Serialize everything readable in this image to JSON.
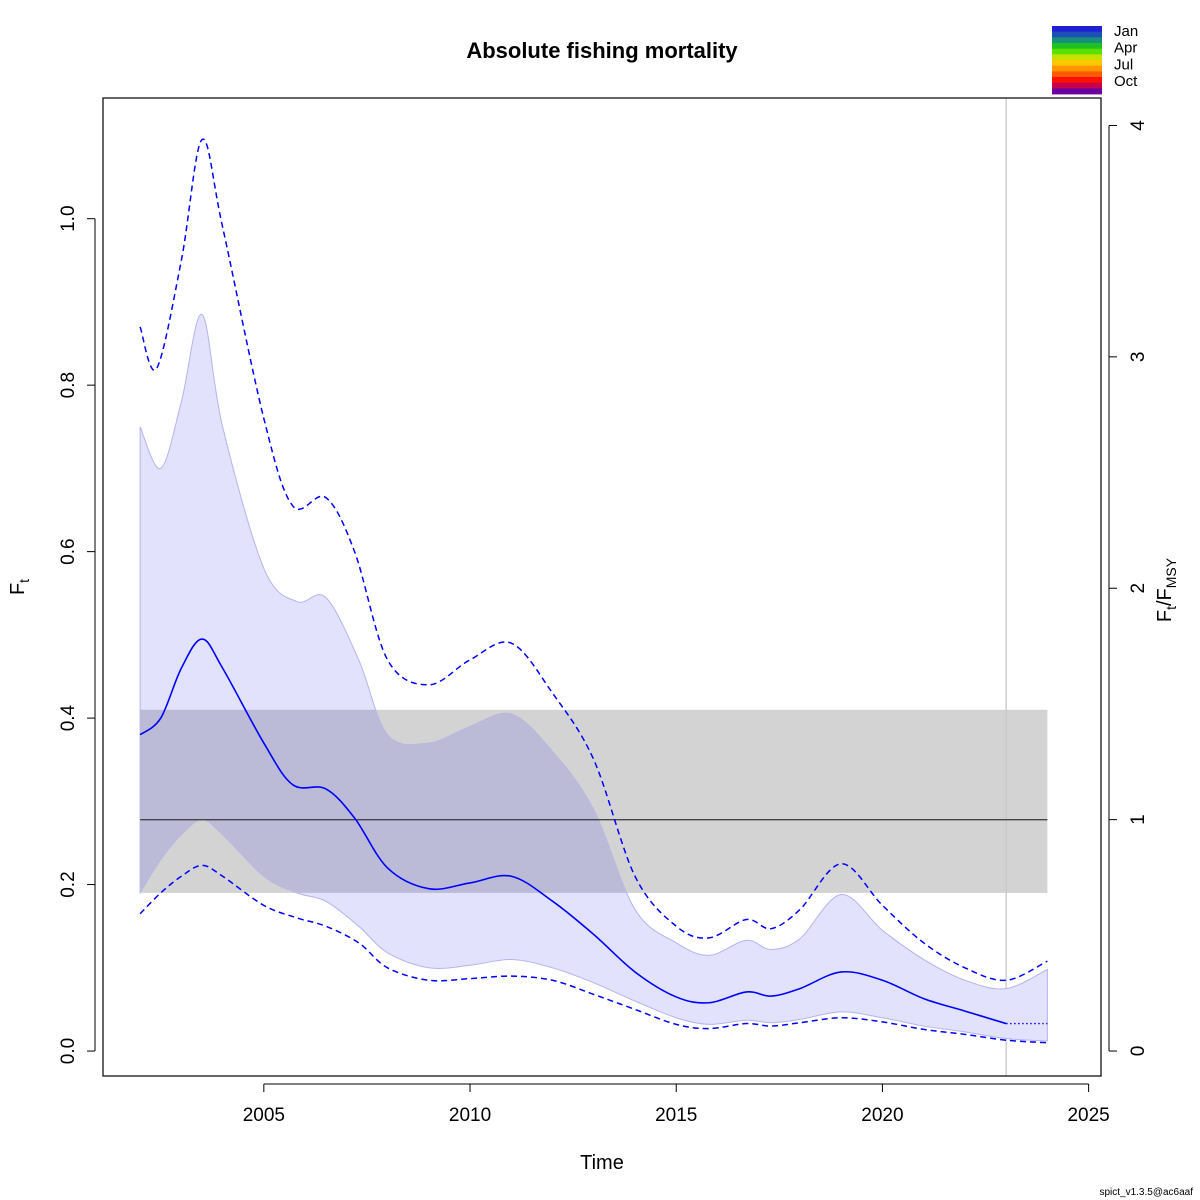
{
  "chart_data": {
    "type": "line",
    "title": "Absolute fishing mortality",
    "xlabel": "Time",
    "ylabel_main": "F",
    "ylabel_sub": "t",
    "y2label_a": "F",
    "y2label_a_sub": "t",
    "y2label_sep": "/",
    "y2label_b": "F",
    "y2label_b_sub": "MSY",
    "xlim": [
      2001.1,
      2025.3
    ],
    "ylim": [
      -0.03,
      1.145
    ],
    "xticks": [
      2005,
      2010,
      2015,
      2020,
      2025
    ],
    "xtick_labels": [
      "2005",
      "2010",
      "2015",
      "2020",
      "2025"
    ],
    "yticks": [
      0.0,
      0.2,
      0.4,
      0.6,
      0.8,
      1.0
    ],
    "ytick_labels": [
      "0.0",
      "0.2",
      "0.4",
      "0.6",
      "0.8",
      "1.0"
    ],
    "y2_scale_fmsy": 0.278,
    "y2ticks": [
      0,
      1,
      2,
      3,
      4
    ],
    "y2tick_labels": [
      "0",
      "1",
      "2",
      "3",
      "4"
    ],
    "fmsy": 0.278,
    "fmsy_ci": [
      0.19,
      0.41
    ],
    "fmsy_x_range": [
      2002,
      2024
    ],
    "forecast_start": 2023,
    "series": [
      {
        "name": "F_t estimate",
        "x": [
          2002,
          2002.5,
          2003,
          2003.5,
          2004,
          2005,
          2005.7,
          2006.5,
          2007.2,
          2008,
          2009,
          2010,
          2011,
          2012,
          2013,
          2014,
          2015,
          2015.8,
          2016.7,
          2017.3,
          2018,
          2019,
          2020,
          2021,
          2022,
          2023
        ],
        "values": [
          0.38,
          0.4,
          0.46,
          0.495,
          0.46,
          0.37,
          0.32,
          0.315,
          0.28,
          0.22,
          0.195,
          0.202,
          0.21,
          0.18,
          0.14,
          0.095,
          0.065,
          0.058,
          0.071,
          0.066,
          0.075,
          0.095,
          0.085,
          0.063,
          0.048,
          0.033
        ]
      },
      {
        "name": "F_t forecast",
        "x": [
          2023,
          2024
        ],
        "values": [
          0.033,
          0.033
        ]
      },
      {
        "name": "F_t 95% CI upper",
        "x": [
          2002,
          2002.5,
          2003,
          2003.5,
          2004,
          2005,
          2005.8,
          2006.5,
          2007.3,
          2008,
          2009,
          2010,
          2011,
          2012,
          2013,
          2014,
          2015,
          2015.8,
          2016.7,
          2017.3,
          2018,
          2019,
          2020,
          2021,
          2022,
          2023,
          2024
        ],
        "values": [
          0.75,
          0.7,
          0.78,
          0.885,
          0.75,
          0.58,
          0.54,
          0.545,
          0.47,
          0.38,
          0.37,
          0.39,
          0.405,
          0.36,
          0.29,
          0.17,
          0.13,
          0.115,
          0.133,
          0.122,
          0.135,
          0.188,
          0.145,
          0.11,
          0.085,
          0.075,
          0.098
        ]
      },
      {
        "name": "F_t 95% CI lower",
        "x": [
          2002,
          2002.5,
          2003,
          2003.5,
          2004,
          2005,
          2005.8,
          2006.5,
          2007.3,
          2008,
          2009,
          2010,
          2011,
          2012,
          2013,
          2014,
          2015,
          2015.8,
          2016.7,
          2017.3,
          2018,
          2019,
          2020,
          2021,
          2022,
          2023,
          2024
        ],
        "values": [
          0.19,
          0.23,
          0.26,
          0.278,
          0.26,
          0.21,
          0.19,
          0.18,
          0.15,
          0.118,
          0.1,
          0.103,
          0.11,
          0.1,
          0.082,
          0.06,
          0.04,
          0.032,
          0.037,
          0.034,
          0.038,
          0.047,
          0.04,
          0.03,
          0.023,
          0.015,
          0.012
        ]
      },
      {
        "name": "Upper dashed bound",
        "x": [
          2002,
          2002.4,
          2003,
          2003.5,
          2004,
          2005,
          2005.7,
          2006.5,
          2007.2,
          2008,
          2009,
          2010,
          2011,
          2012,
          2013,
          2014,
          2015,
          2015.8,
          2016.7,
          2017.3,
          2018,
          2019,
          2020,
          2021,
          2022,
          2023,
          2024
        ],
        "values": [
          0.87,
          0.82,
          0.95,
          1.095,
          0.99,
          0.76,
          0.655,
          0.665,
          0.6,
          0.47,
          0.44,
          0.47,
          0.49,
          0.43,
          0.35,
          0.21,
          0.15,
          0.136,
          0.158,
          0.147,
          0.17,
          0.225,
          0.175,
          0.13,
          0.1,
          0.085,
          0.108
        ]
      },
      {
        "name": "Lower dashed bound",
        "x": [
          2002,
          2002.5,
          2003,
          2003.5,
          2004,
          2005,
          2005.8,
          2006.5,
          2007.3,
          2008,
          2009,
          2010,
          2011,
          2012,
          2013,
          2014,
          2015,
          2015.8,
          2016.7,
          2017.3,
          2018,
          2019,
          2020,
          2021,
          2022,
          2023,
          2024
        ],
        "values": [
          0.165,
          0.19,
          0.21,
          0.223,
          0.21,
          0.175,
          0.16,
          0.15,
          0.13,
          0.1,
          0.085,
          0.087,
          0.09,
          0.085,
          0.068,
          0.05,
          0.032,
          0.027,
          0.033,
          0.03,
          0.034,
          0.04,
          0.035,
          0.026,
          0.02,
          0.013,
          0.01
        ]
      }
    ],
    "legend": {
      "position": "top-right",
      "labels": [
        "Jan",
        "Apr",
        "Jul",
        "Oct"
      ],
      "colors": [
        "#1F1FD6",
        "#1D4FB5",
        "#178F7A",
        "#20C020",
        "#58E000",
        "#C8E000",
        "#FFC800",
        "#FF9600",
        "#FF5A00",
        "#FF1000",
        "#C8004C",
        "#6A00A0"
      ]
    },
    "colors": {
      "estimate": "#0000FF",
      "ci_fill": "#E2E2FC",
      "ci_edge": "#B4B4F0",
      "fmsy_band": "#D3D3D3",
      "overlap": "#BBBBD8",
      "fmsy_line": "#444444",
      "forecast_line": "#C8C8C8"
    }
  },
  "footer": "spict_v1.3.5@ac6aaf"
}
